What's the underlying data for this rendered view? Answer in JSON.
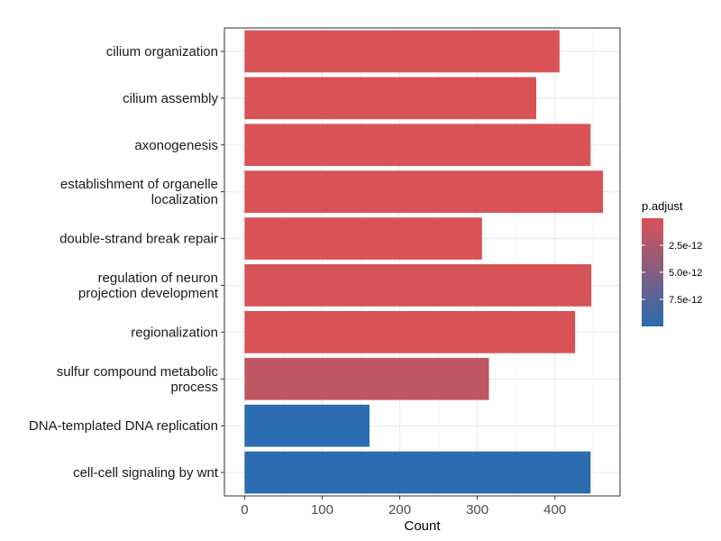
{
  "chart_data": {
    "type": "bar",
    "orientation": "horizontal",
    "categories": [
      "cilium organization",
      "cilium assembly",
      "axonogenesis",
      "establishment of organelle localization",
      "double-strand break repair",
      "regulation of neuron projection development",
      "regionalization",
      "sulfur compound metabolic process",
      "DNA-templated DNA replication",
      "cell-cell signaling by wnt"
    ],
    "category_lines": [
      [
        "cilium organization"
      ],
      [
        "cilium assembly"
      ],
      [
        "axonogenesis"
      ],
      [
        "establishment of organelle",
        "localization"
      ],
      [
        "double-strand break repair"
      ],
      [
        "regulation of neuron",
        "projection development"
      ],
      [
        "regionalization"
      ],
      [
        "sulfur compound metabolic",
        "process"
      ],
      [
        "DNA-templated DNA replication"
      ],
      [
        "cell-cell signaling by wnt"
      ]
    ],
    "values": [
      406,
      376,
      446,
      462,
      306,
      447,
      426,
      315,
      161,
      446
    ],
    "p_adjust_fraction": [
      0.0,
      0.0,
      0.0,
      0.0,
      0.0,
      0.02,
      0.0,
      0.15,
      1.0,
      1.0
    ],
    "xlabel": "Count",
    "ylabel": "",
    "xlim": [
      -26,
      484
    ],
    "xticks": [
      0,
      100,
      200,
      300,
      400
    ],
    "xtick_labels": [
      "0",
      "100",
      "200",
      "300",
      "400"
    ],
    "grid": true,
    "legend": {
      "title": "p.adjust",
      "placement": "right",
      "tick_labels": [
        "2.5e-12",
        "5.0e-12",
        "7.5e-12"
      ],
      "tick_fractions": [
        0.25,
        0.5,
        0.75
      ]
    },
    "colors": {
      "low_p": "#D95256",
      "high_p": "#2B6BAF",
      "grid": "#EBEBEB",
      "panel_border": "#333333"
    }
  }
}
